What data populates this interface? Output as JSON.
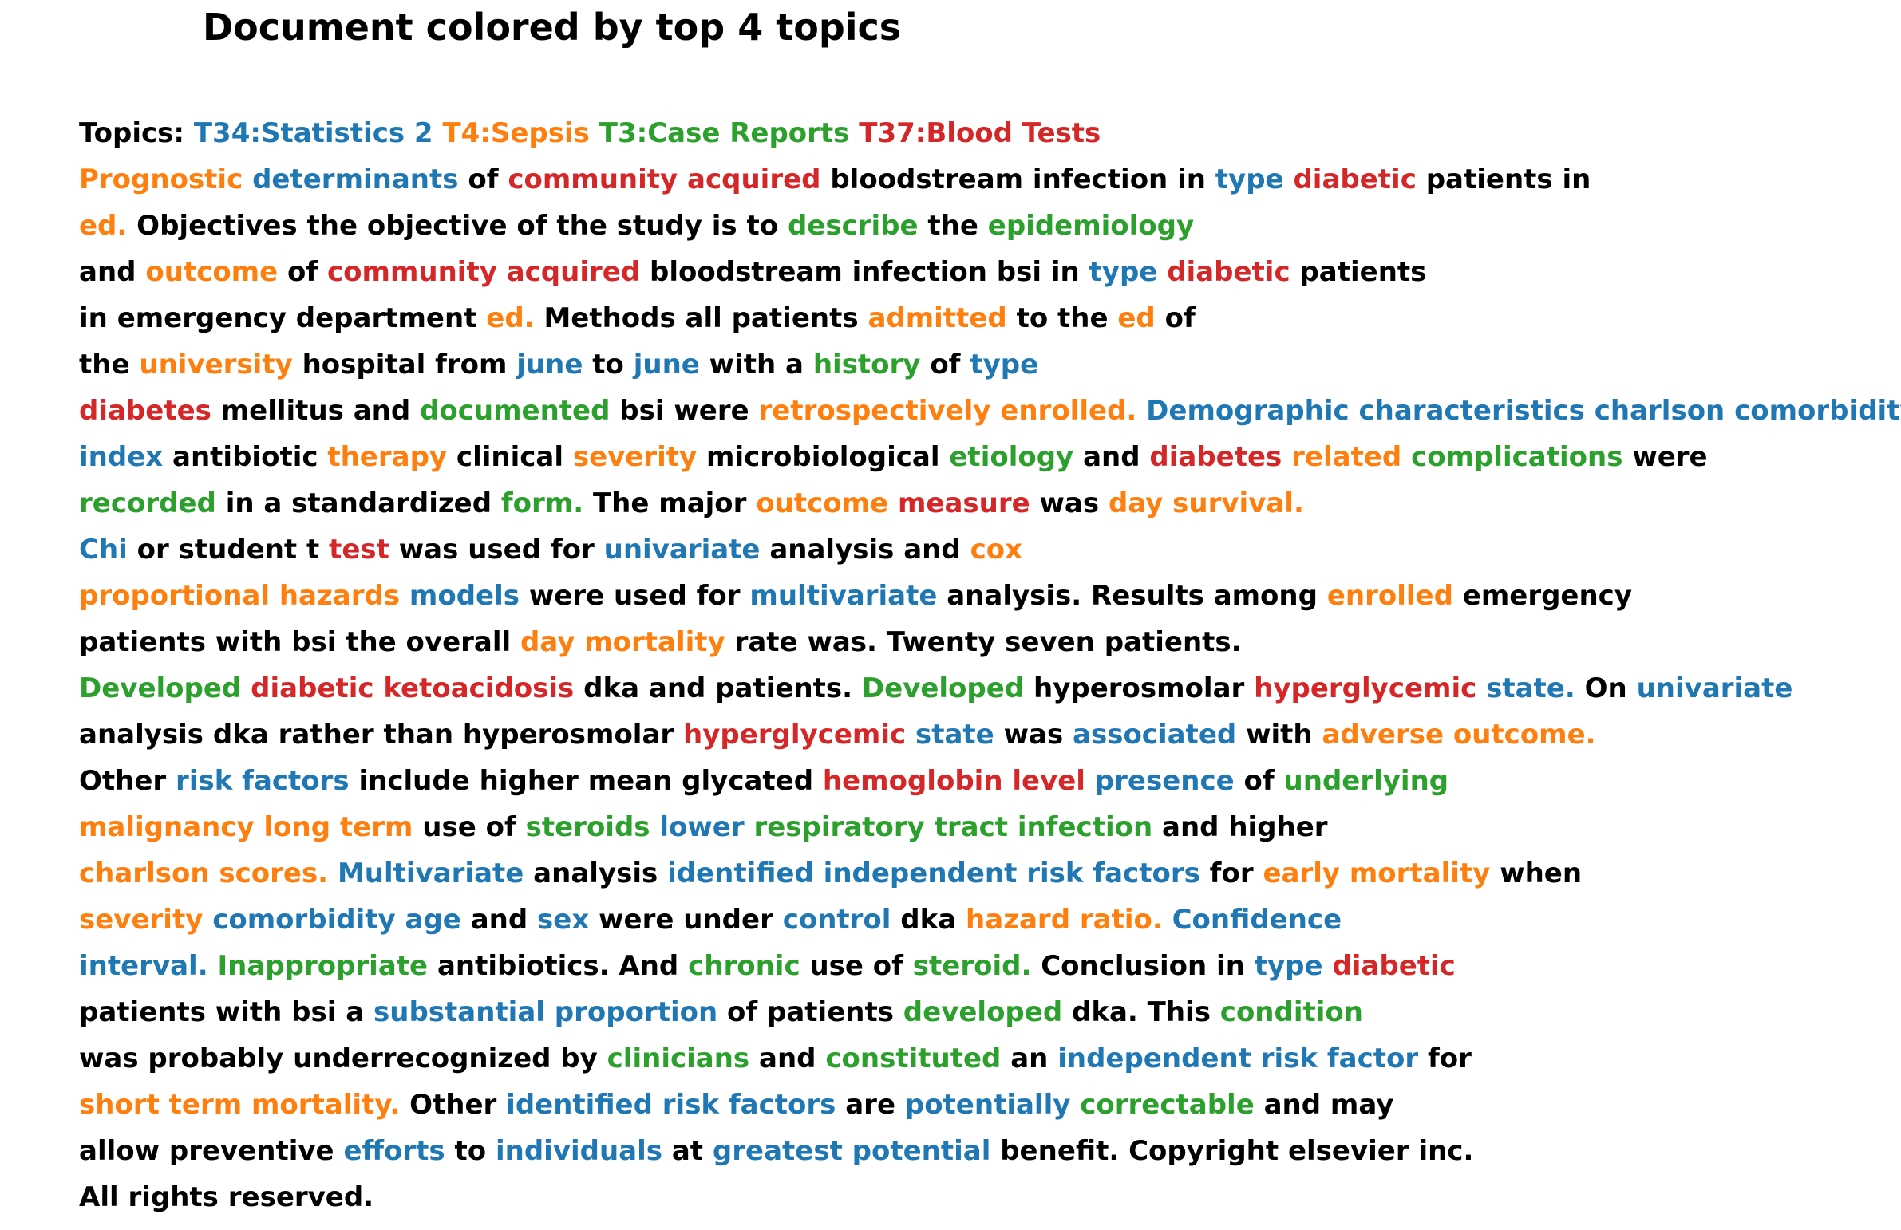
{
  "title": "Document colored by top 4 topics",
  "topic_colors": {
    "T34": "#1f77b4",
    "T4": "#ff7f0e",
    "T3": "#2ca02c",
    "T37": "#d62728",
    "none": "#000000"
  },
  "lines": [
    [
      [
        "Topics:",
        null
      ],
      [
        "T34:Statistics 2",
        "T34"
      ],
      [
        "T4:Sepsis",
        "T4"
      ],
      [
        "T3:Case Reports",
        "T3"
      ],
      [
        "T37:Blood Tests",
        "T37"
      ]
    ],
    [
      [
        "Prognostic",
        "T4"
      ],
      [
        "determinants",
        "T34"
      ],
      [
        "of",
        null
      ],
      [
        "community acquired",
        "T37"
      ],
      [
        "bloodstream infection in",
        null
      ],
      [
        "type",
        "T34"
      ],
      [
        "diabetic",
        "T37"
      ],
      [
        "patients in",
        null
      ]
    ],
    [
      [
        "ed.",
        "T4"
      ],
      [
        "Objectives the objective of the study is to",
        null
      ],
      [
        "describe",
        "T3"
      ],
      [
        "the",
        null
      ],
      [
        "epidemiology",
        "T3"
      ]
    ],
    [
      [
        "and",
        null
      ],
      [
        "outcome",
        "T4"
      ],
      [
        "of",
        null
      ],
      [
        "community acquired",
        "T37"
      ],
      [
        "bloodstream infection bsi in",
        null
      ],
      [
        "type",
        "T34"
      ],
      [
        "diabetic",
        "T37"
      ],
      [
        "patients",
        null
      ]
    ],
    [
      [
        "in emergency department",
        null
      ],
      [
        "ed.",
        "T4"
      ],
      [
        "Methods all patients",
        null
      ],
      [
        "admitted",
        "T4"
      ],
      [
        "to the",
        null
      ],
      [
        "ed",
        "T4"
      ],
      [
        "of",
        null
      ]
    ],
    [
      [
        "the",
        null
      ],
      [
        "university",
        "T4"
      ],
      [
        "hospital from",
        null
      ],
      [
        "june",
        "T34"
      ],
      [
        "to",
        null
      ],
      [
        "june",
        "T34"
      ],
      [
        "with a",
        null
      ],
      [
        "history",
        "T3"
      ],
      [
        "of",
        null
      ],
      [
        "type",
        "T34"
      ]
    ],
    [
      [
        "diabetes",
        "T37"
      ],
      [
        "mellitus and",
        null
      ],
      [
        "documented",
        "T3"
      ],
      [
        "bsi were",
        null
      ],
      [
        "retrospectively enrolled.",
        "T4"
      ],
      [
        "Demographic characteristics charlson comorbidity",
        "T34"
      ]
    ],
    [
      [
        "index",
        "T34"
      ],
      [
        "antibiotic",
        null
      ],
      [
        "therapy",
        "T4"
      ],
      [
        "clinical",
        null
      ],
      [
        "severity",
        "T4"
      ],
      [
        "microbiological",
        null
      ],
      [
        "etiology",
        "T3"
      ],
      [
        "and",
        null
      ],
      [
        "diabetes",
        "T37"
      ],
      [
        "related",
        "T4"
      ],
      [
        "complications",
        "T3"
      ],
      [
        "were",
        null
      ]
    ],
    [
      [
        "recorded",
        "T3"
      ],
      [
        "in a standardized",
        null
      ],
      [
        "form.",
        "T3"
      ],
      [
        "The major",
        null
      ],
      [
        "outcome",
        "T4"
      ],
      [
        "measure",
        "T37"
      ],
      [
        "was",
        null
      ],
      [
        "day survival.",
        "T4"
      ]
    ],
    [
      [
        "Chi",
        "T34"
      ],
      [
        "or student t",
        null
      ],
      [
        "test",
        "T37"
      ],
      [
        "was used for",
        null
      ],
      [
        "univariate",
        "T34"
      ],
      [
        "analysis and",
        null
      ],
      [
        "cox",
        "T4"
      ]
    ],
    [
      [
        "proportional hazards",
        "T4"
      ],
      [
        "models",
        "T34"
      ],
      [
        "were used for",
        null
      ],
      [
        "multivariate",
        "T34"
      ],
      [
        "analysis. Results among",
        null
      ],
      [
        "enrolled",
        "T4"
      ],
      [
        "emergency",
        null
      ]
    ],
    [
      [
        "patients with bsi the overall",
        null
      ],
      [
        "day mortality",
        "T4"
      ],
      [
        "rate was. Twenty seven patients.",
        null
      ]
    ],
    [
      [
        "Developed",
        "T3"
      ],
      [
        "diabetic ketoacidosis",
        "T37"
      ],
      [
        "dka and patients.",
        null
      ],
      [
        "Developed",
        "T3"
      ],
      [
        "hyperosmolar",
        null
      ],
      [
        "hyperglycemic",
        "T37"
      ],
      [
        "state.",
        "T34"
      ],
      [
        "On",
        null
      ],
      [
        "univariate",
        "T34"
      ]
    ],
    [
      [
        "analysis dka rather than hyperosmolar",
        null
      ],
      [
        "hyperglycemic",
        "T37"
      ],
      [
        "state",
        "T34"
      ],
      [
        "was",
        null
      ],
      [
        "associated",
        "T34"
      ],
      [
        "with",
        null
      ],
      [
        "adverse outcome.",
        "T4"
      ]
    ],
    [
      [
        "Other",
        null
      ],
      [
        "risk factors",
        "T34"
      ],
      [
        "include higher mean glycated",
        null
      ],
      [
        "hemoglobin level",
        "T37"
      ],
      [
        "presence",
        "T34"
      ],
      [
        "of",
        null
      ],
      [
        "underlying",
        "T3"
      ]
    ],
    [
      [
        "malignancy long term",
        "T4"
      ],
      [
        "use of",
        null
      ],
      [
        "steroids",
        "T3"
      ],
      [
        "lower",
        "T34"
      ],
      [
        "respiratory tract infection",
        "T3"
      ],
      [
        "and higher",
        null
      ]
    ],
    [
      [
        "charlson scores.",
        "T4"
      ],
      [
        "Multivariate",
        "T34"
      ],
      [
        "analysis",
        null
      ],
      [
        "identified independent risk factors",
        "T34"
      ],
      [
        "for",
        null
      ],
      [
        "early mortality",
        "T4"
      ],
      [
        "when",
        null
      ]
    ],
    [
      [
        "severity",
        "T4"
      ],
      [
        "comorbidity age",
        "T34"
      ],
      [
        "and",
        null
      ],
      [
        "sex",
        "T34"
      ],
      [
        "were under",
        null
      ],
      [
        "control",
        "T34"
      ],
      [
        "dka",
        null
      ],
      [
        "hazard ratio.",
        "T4"
      ],
      [
        "Confidence",
        "T34"
      ]
    ],
    [
      [
        "interval.",
        "T34"
      ],
      [
        "Inappropriate",
        "T3"
      ],
      [
        "antibiotics. And",
        null
      ],
      [
        "chronic",
        "T3"
      ],
      [
        "use of",
        null
      ],
      [
        "steroid.",
        "T3"
      ],
      [
        "Conclusion in",
        null
      ],
      [
        "type",
        "T34"
      ],
      [
        "diabetic",
        "T37"
      ]
    ],
    [
      [
        "patients with bsi a",
        null
      ],
      [
        "substantial proportion",
        "T34"
      ],
      [
        "of patients",
        null
      ],
      [
        "developed",
        "T3"
      ],
      [
        "dka. This",
        null
      ],
      [
        "condition",
        "T3"
      ]
    ],
    [
      [
        "was probably underrecognized by",
        null
      ],
      [
        "clinicians",
        "T3"
      ],
      [
        "and",
        null
      ],
      [
        "constituted",
        "T3"
      ],
      [
        "an",
        null
      ],
      [
        "independent risk factor",
        "T34"
      ],
      [
        "for",
        null
      ]
    ],
    [
      [
        "short term mortality.",
        "T4"
      ],
      [
        "Other",
        null
      ],
      [
        "identified risk factors",
        "T34"
      ],
      [
        "are",
        null
      ],
      [
        "potentially",
        "T34"
      ],
      [
        "correctable",
        "T3"
      ],
      [
        "and may",
        null
      ]
    ],
    [
      [
        "allow preventive",
        null
      ],
      [
        "efforts",
        "T34"
      ],
      [
        "to",
        null
      ],
      [
        "individuals",
        "T34"
      ],
      [
        "at",
        null
      ],
      [
        "greatest potential",
        "T34"
      ],
      [
        "benefit. Copyright elsevier inc.",
        null
      ]
    ],
    [
      [
        "All rights reserved.",
        null
      ]
    ]
  ]
}
